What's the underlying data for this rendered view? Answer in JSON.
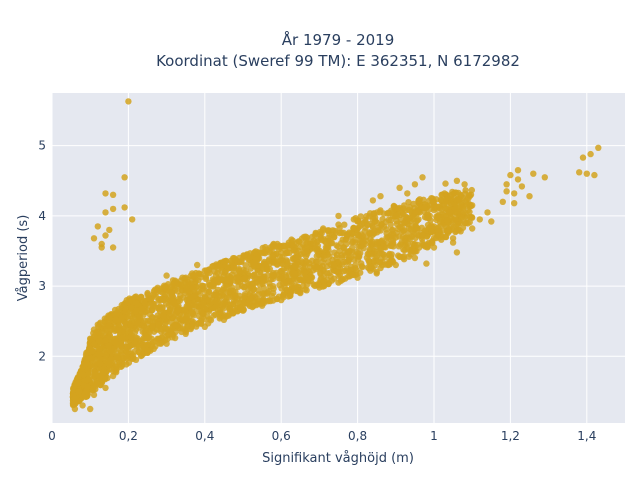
{
  "chart_data": {
    "type": "scatter",
    "title_line1": "År 1979 - 2019",
    "title_line2": "Koordinat (Sweref 99 TM): E 362351, N 6172982",
    "xlabel": "Signifikant våghöjd (m)",
    "ylabel": "Vågperiod (s)",
    "xlim": [
      0,
      1.5
    ],
    "ylim": [
      1.05,
      5.75
    ],
    "xticks": [
      0,
      0.2,
      0.4,
      0.6,
      0.8,
      1,
      1.2,
      1.4
    ],
    "xtick_labels": [
      "0",
      "0,2",
      "0,4",
      "0,6",
      "0,8",
      "1",
      "1,2",
      "1,4"
    ],
    "yticks": [
      2,
      3,
      4,
      5
    ],
    "ytick_labels": [
      "2",
      "3",
      "4",
      "5"
    ],
    "grid": true,
    "legend": "none",
    "colors": {
      "marker": "#d4a31e",
      "plot_bg": "#e5e8f0",
      "grid": "#ffffff",
      "text": "#2a3f5f"
    },
    "series": [
      {
        "points": [
          [
            0.2,
            5.63
          ],
          [
            0.19,
            4.55
          ],
          [
            0.14,
            4.32
          ],
          [
            0.16,
            4.3
          ],
          [
            0.14,
            4.05
          ],
          [
            0.16,
            4.1
          ],
          [
            0.19,
            4.12
          ],
          [
            0.21,
            3.95
          ],
          [
            0.12,
            3.85
          ],
          [
            0.15,
            3.8
          ],
          [
            0.11,
            3.68
          ],
          [
            0.13,
            3.6
          ],
          [
            0.14,
            3.72
          ],
          [
            0.16,
            3.55
          ],
          [
            0.13,
            3.55
          ],
          [
            0.06,
            1.25
          ],
          [
            0.06,
            1.4
          ],
          [
            0.08,
            1.3
          ],
          [
            0.1,
            1.25
          ],
          [
            0.07,
            1.5
          ],
          [
            1.43,
            4.97
          ],
          [
            1.41,
            4.88
          ],
          [
            1.39,
            4.83
          ],
          [
            1.38,
            4.62
          ],
          [
            1.4,
            4.6
          ],
          [
            1.42,
            4.58
          ],
          [
            1.29,
            4.55
          ],
          [
            1.26,
            4.6
          ],
          [
            1.22,
            4.52
          ],
          [
            1.2,
            4.58
          ],
          [
            1.22,
            4.65
          ],
          [
            1.25,
            4.28
          ],
          [
            1.23,
            4.42
          ],
          [
            1.21,
            4.32
          ],
          [
            1.19,
            4.35
          ],
          [
            1.18,
            4.2
          ],
          [
            1.21,
            4.18
          ],
          [
            1.19,
            4.45
          ],
          [
            1.08,
            4.45
          ],
          [
            1.06,
            4.5
          ],
          [
            1.03,
            4.46
          ],
          [
            1.09,
            4.25
          ],
          [
            1.1,
            4.15
          ],
          [
            1.12,
            3.95
          ],
          [
            1.05,
            3.62
          ],
          [
            1.06,
            3.48
          ],
          [
            1.03,
            3.7
          ],
          [
            0.98,
            3.32
          ],
          [
            0.97,
            3.62
          ],
          [
            1.01,
            3.72
          ],
          [
            0.92,
            3.52
          ],
          [
            0.85,
            3.18
          ],
          [
            0.83,
            3.25
          ],
          [
            0.88,
            3.3
          ],
          [
            1.07,
            3.78
          ],
          [
            1.0,
            3.85
          ],
          [
            0.99,
            4.1
          ],
          [
            1.02,
            4.3
          ],
          [
            0.93,
            4.32
          ],
          [
            0.95,
            4.45
          ],
          [
            0.96,
            4.22
          ],
          [
            0.91,
            4.4
          ],
          [
            0.86,
            4.28
          ],
          [
            0.84,
            4.22
          ],
          [
            0.9,
            4.0
          ],
          [
            0.97,
            4.55
          ],
          [
            1.04,
            4.05
          ],
          [
            1.14,
            4.05
          ],
          [
            0.75,
            4.0
          ],
          [
            0.79,
            3.95
          ],
          [
            0.71,
            3.82
          ],
          [
            0.66,
            3.7
          ],
          [
            0.62,
            3.62
          ],
          [
            0.58,
            3.6
          ],
          [
            0.55,
            3.47
          ],
          [
            0.52,
            3.42
          ],
          [
            0.48,
            3.38
          ],
          [
            0.45,
            3.35
          ],
          [
            0.42,
            3.28
          ],
          [
            0.4,
            3.22
          ],
          [
            0.38,
            3.3
          ],
          [
            0.35,
            3.12
          ],
          [
            0.32,
            3.05
          ],
          [
            0.3,
            3.15
          ],
          [
            0.27,
            2.95
          ],
          [
            0.25,
            2.88
          ],
          [
            0.22,
            2.85
          ],
          [
            0.2,
            2.78
          ],
          [
            0.17,
            2.62
          ],
          [
            0.15,
            2.55
          ],
          [
            0.12,
            2.45
          ],
          [
            0.11,
            2.38
          ],
          [
            0.1,
            2.25
          ],
          [
            0.09,
            2.05
          ],
          [
            0.08,
            1.85
          ],
          [
            0.07,
            1.62
          ],
          [
            0.09,
            1.5
          ],
          [
            0.11,
            1.45
          ],
          [
            0.14,
            1.55
          ],
          [
            0.16,
            1.72
          ],
          [
            0.18,
            1.85
          ],
          [
            0.22,
            1.95
          ],
          [
            0.25,
            2.05
          ],
          [
            0.3,
            2.18
          ],
          [
            0.35,
            2.32
          ],
          [
            0.4,
            2.42
          ],
          [
            0.45,
            2.52
          ],
          [
            0.5,
            2.65
          ],
          [
            0.55,
            2.72
          ],
          [
            0.6,
            2.8
          ],
          [
            0.65,
            2.9
          ],
          [
            0.7,
            2.98
          ],
          [
            0.75,
            3.05
          ],
          [
            0.8,
            3.12
          ],
          [
            0.85,
            3.2
          ],
          [
            0.9,
            3.3
          ],
          [
            0.95,
            3.4
          ],
          [
            1.0,
            3.55
          ],
          [
            1.05,
            3.68
          ],
          [
            1.1,
            3.82
          ],
          [
            1.15,
            3.92
          ]
        ]
      }
    ],
    "density_band": {
      "description_x": [
        0.055,
        0.08,
        0.1,
        0.12,
        0.15,
        0.2,
        0.25,
        0.3,
        0.35,
        0.4,
        0.45,
        0.5,
        0.55,
        0.6,
        0.65,
        0.7,
        0.75,
        0.8,
        0.85,
        0.9,
        0.95,
        1.0,
        1.05,
        1.1
      ],
      "lower": [
        1.3,
        1.4,
        1.45,
        1.55,
        1.7,
        1.9,
        2.05,
        2.2,
        2.33,
        2.45,
        2.55,
        2.65,
        2.75,
        2.82,
        2.9,
        2.98,
        3.05,
        3.15,
        3.22,
        3.32,
        3.45,
        3.6,
        3.75,
        3.9
      ],
      "upper": [
        1.55,
        1.85,
        2.25,
        2.45,
        2.6,
        2.82,
        2.92,
        3.05,
        3.15,
        3.25,
        3.35,
        3.45,
        3.55,
        3.62,
        3.7,
        3.78,
        3.88,
        3.98,
        4.08,
        4.15,
        4.22,
        4.3,
        4.35,
        4.4
      ]
    }
  }
}
